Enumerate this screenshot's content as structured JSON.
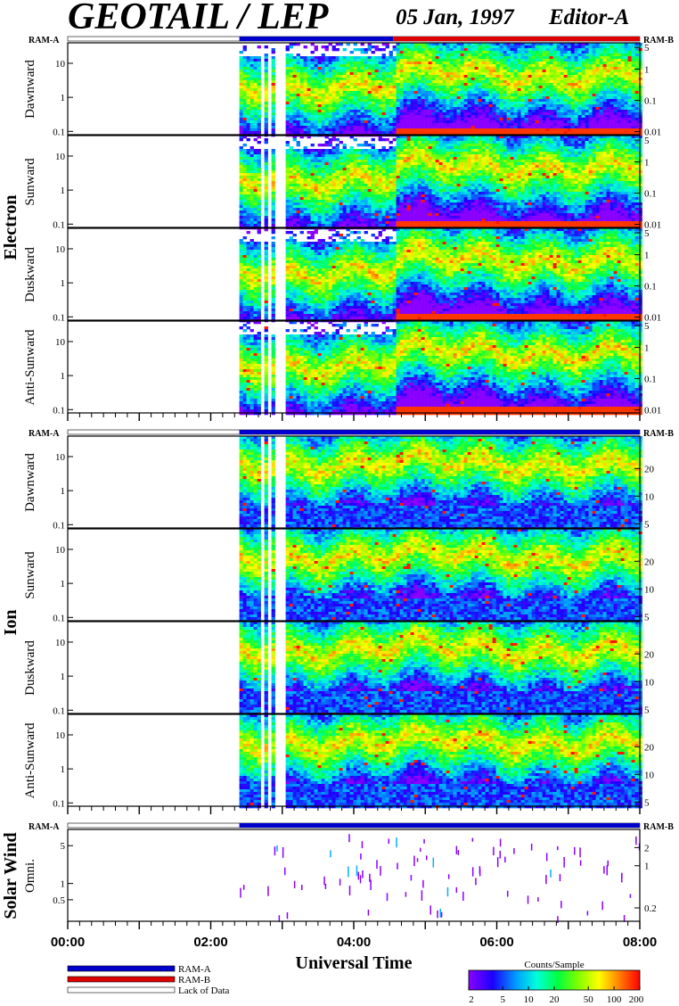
{
  "header": {
    "title": "GEOTAIL / LEP",
    "date": "05 Jan, 1997",
    "editor": "Editor-A"
  },
  "colors": {
    "ram_a": "#0000cc",
    "ram_b": "#dd0000",
    "lack_of_data": "#ffffff",
    "frame": "#000000"
  },
  "mode_labels": {
    "ram_a": "RAM-A",
    "ram_b": "RAM-B"
  },
  "groups": [
    {
      "name": "Electron",
      "panels": [
        "Dawnward",
        "Sunward",
        "Duskward",
        "Anti-Sunward"
      ]
    },
    {
      "name": "Ion",
      "panels": [
        "Dawnward",
        "Sunward",
        "Duskward",
        "Anti-Sunward"
      ]
    },
    {
      "name": "Solar Wind",
      "panels": [
        "Omni."
      ]
    }
  ],
  "chart_data": {
    "type": "heatmap",
    "xlabel": "Universal Time",
    "x_ticks": [
      "00:00",
      "02:00",
      "04:00",
      "06:00",
      "08:00"
    ],
    "xlim": [
      "00:00",
      "08:00"
    ],
    "left_axis": {
      "scale": "log",
      "ticks_main": [
        "0.1",
        "1",
        "10"
      ],
      "ticks_solar_wind": [
        "0.5",
        "1",
        "5"
      ]
    },
    "right_axis": {
      "electron_ticks": [
        "0.01",
        "0.1",
        "1",
        "5"
      ],
      "ion_ticks": [
        "5",
        "10",
        "20"
      ],
      "solar_wind_ticks": [
        "0.2",
        "1",
        "2"
      ]
    },
    "data_coverage": {
      "lack_of_data_until": "02:24",
      "ram_a_electron": [
        "02:24",
        "04:33"
      ],
      "ram_b_electron": [
        "04:33",
        "08:00"
      ]
    },
    "colorbar": {
      "title": "Counts/Sample",
      "ticks": [
        "2",
        "5",
        "10",
        "20",
        "50",
        "100",
        "200"
      ],
      "scale": "log",
      "range": [
        2,
        200
      ]
    },
    "legend": [
      {
        "label": "RAM-A",
        "color": "#0000cc"
      },
      {
        "label": "RAM-B",
        "color": "#dd0000"
      },
      {
        "label": "Lack of Data",
        "color": "#ffffff"
      }
    ]
  }
}
